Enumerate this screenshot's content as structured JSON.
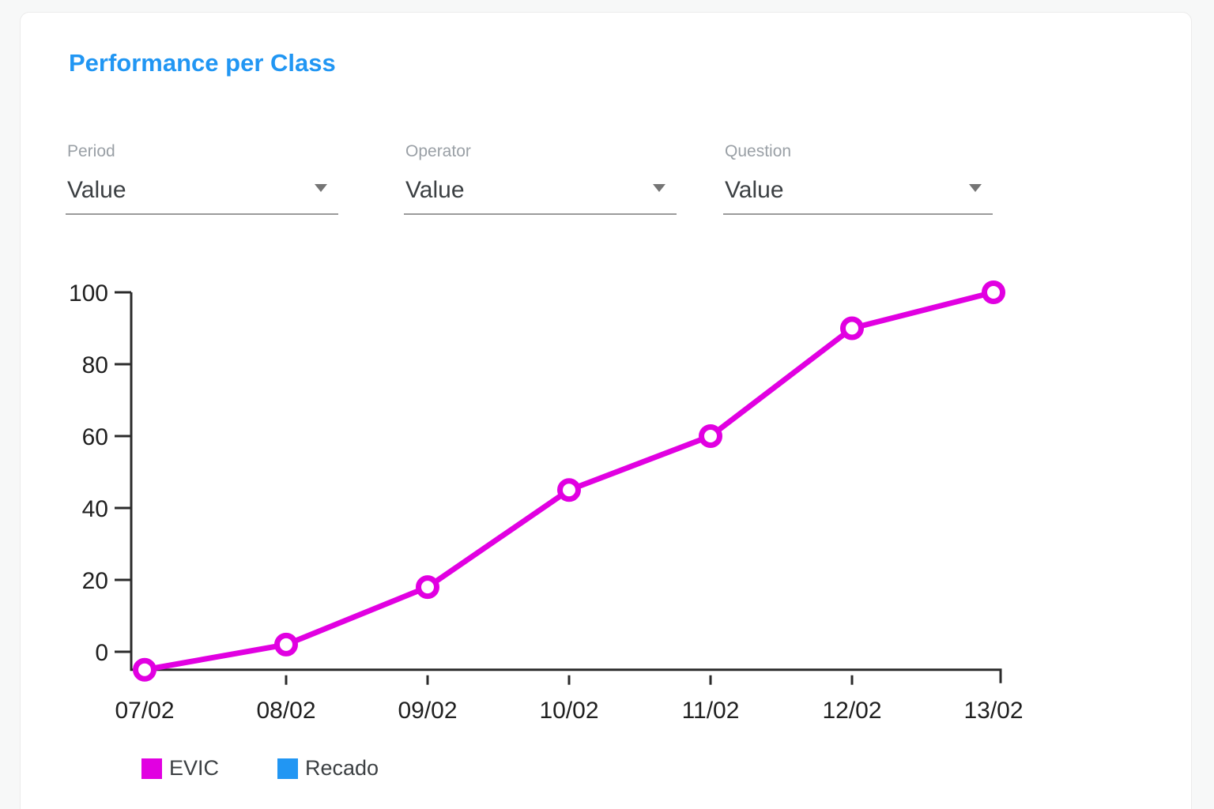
{
  "header": {
    "title": "Performance per Class"
  },
  "filters": [
    {
      "label": "Period",
      "value": "Value"
    },
    {
      "label": "Operator",
      "value": "Value"
    },
    {
      "label": "Question",
      "value": "Value"
    }
  ],
  "chart_data": {
    "type": "line",
    "categories": [
      "07/02",
      "08/02",
      "09/02",
      "10/02",
      "11/02",
      "12/02",
      "13/02"
    ],
    "series": [
      {
        "name": "EVIC",
        "color": "#E100E1",
        "values": [
          -5,
          2,
          18,
          45,
          60,
          90,
          100
        ]
      },
      {
        "name": "Recado",
        "color": "#2196F3",
        "values": []
      }
    ],
    "y_ticks": [
      0,
      20,
      40,
      60,
      80,
      100
    ],
    "ylim": [
      -5,
      100
    ],
    "title": "",
    "xlabel": "",
    "ylabel": "",
    "grid": false,
    "legend_position": "bottom",
    "marker": "open-circle"
  },
  "colors": {
    "accent_blue": "#2196F3",
    "series_magenta": "#E100E1",
    "axis": "#2b2b2b",
    "tick_label": "#1f1f1f",
    "field_label_gray": "#9aa0a6",
    "field_value_gray": "#3c4043"
  }
}
